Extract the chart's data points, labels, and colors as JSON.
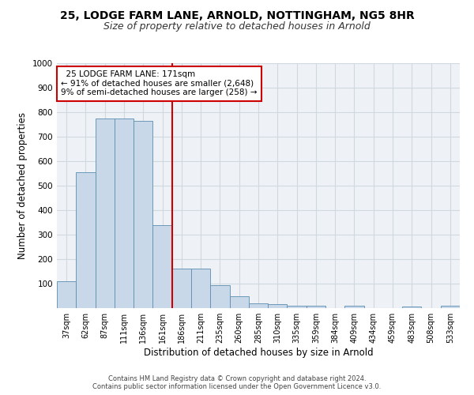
{
  "title1": "25, LODGE FARM LANE, ARNOLD, NOTTINGHAM, NG5 8HR",
  "title2": "Size of property relative to detached houses in Arnold",
  "xlabel": "Distribution of detached houses by size in Arnold",
  "ylabel": "Number of detached properties",
  "categories": [
    "37sqm",
    "62sqm",
    "87sqm",
    "111sqm",
    "136sqm",
    "161sqm",
    "186sqm",
    "211sqm",
    "235sqm",
    "260sqm",
    "285sqm",
    "310sqm",
    "335sqm",
    "359sqm",
    "384sqm",
    "409sqm",
    "434sqm",
    "459sqm",
    "483sqm",
    "508sqm",
    "533sqm"
  ],
  "values": [
    110,
    555,
    775,
    775,
    765,
    340,
    160,
    160,
    95,
    50,
    20,
    15,
    10,
    10,
    0,
    10,
    0,
    0,
    5,
    0,
    10
  ],
  "bar_color": "#c8d8e8",
  "bar_edge_color": "#5b8db0",
  "redline_x": 5.5,
  "annotation_line1": "  25 LODGE FARM LANE: 171sqm",
  "annotation_line2": "← 91% of detached houses are smaller (2,648)",
  "annotation_line3": "9% of semi-detached houses are larger (258) →",
  "annotation_box_color": "#ffffff",
  "annotation_box_edge": "#cc0000",
  "ylim": [
    0,
    1000
  ],
  "yticks": [
    0,
    100,
    200,
    300,
    400,
    500,
    600,
    700,
    800,
    900,
    1000
  ],
  "grid_color": "#d0d8e0",
  "background_color": "#eef2f7",
  "footer1": "Contains HM Land Registry data © Crown copyright and database right 2024.",
  "footer2": "Contains public sector information licensed under the Open Government Licence v3.0.",
  "title1_fontsize": 10,
  "title2_fontsize": 9,
  "tick_fontsize": 7,
  "ylabel_fontsize": 8.5,
  "xlabel_fontsize": 8.5,
  "annotation_fontsize": 7.5
}
